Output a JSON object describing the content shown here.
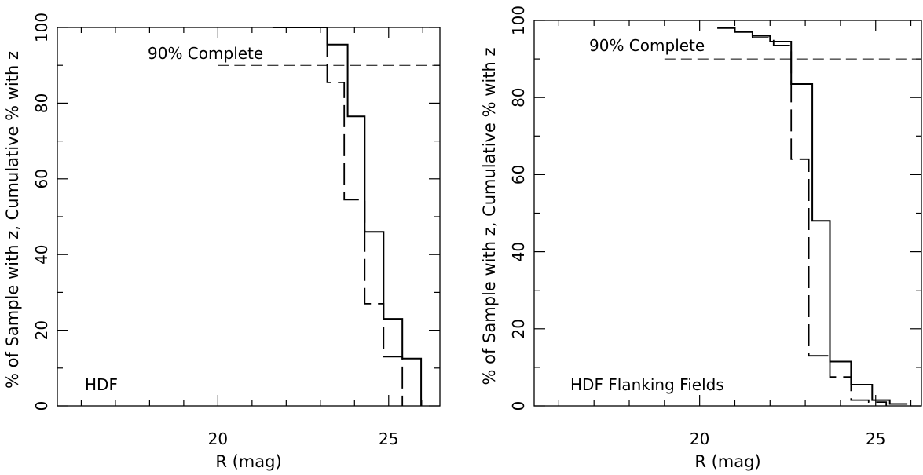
{
  "chart_data": [
    {
      "type": "line",
      "step": true,
      "xlabel": "R (mag)",
      "ylabel": "% of Sample with z, Cumulative % with z",
      "xlim": [
        15.3,
        26.5
      ],
      "ylim": [
        0,
        100
      ],
      "xticks": [
        20,
        25
      ],
      "yticks": [
        0,
        20,
        40,
        60,
        80,
        100
      ],
      "grid": false,
      "annotations": {
        "field_label": "HDF",
        "completeness_label": "90% Complete",
        "completeness_level": 90,
        "completeness_line_x": [
          20.0,
          26.5
        ]
      },
      "series": [
        {
          "style": "solid",
          "x": [
            21.6,
            23.2,
            23.2,
            23.8,
            23.8,
            24.3,
            24.3,
            24.85,
            24.85,
            25.4,
            25.4,
            25.95,
            25.95
          ],
          "y": [
            100,
            100,
            95.5,
            95.5,
            76.5,
            76.5,
            46,
            46,
            23,
            23,
            12.5,
            12.5,
            0
          ]
        },
        {
          "style": "dashed",
          "x": [
            23.2,
            23.2,
            23.7,
            23.7,
            24.3,
            24.3,
            24.85,
            24.85,
            25.4,
            25.4
          ],
          "y": [
            98,
            85.5,
            85.5,
            54.5,
            54.5,
            27,
            27,
            13,
            13,
            0
          ]
        }
      ]
    },
    {
      "type": "line",
      "step": true,
      "xlabel": "R (mag)",
      "ylabel": "% of Sample with z, Cumulative % with z",
      "xlim": [
        15.3,
        26.3
      ],
      "ylim": [
        0,
        100
      ],
      "xticks": [
        20,
        25
      ],
      "yticks": [
        0,
        20,
        40,
        60,
        80,
        100
      ],
      "grid": false,
      "annotations": {
        "field_label": "HDF Flanking Fields",
        "completeness_label": "90% Complete",
        "completeness_level": 90,
        "completeness_line_x": [
          19.0,
          26.3
        ]
      },
      "series": [
        {
          "style": "solid",
          "x": [
            20.5,
            21.0,
            21.0,
            21.5,
            21.5,
            22.0,
            22.0,
            22.6,
            22.6,
            23.2,
            23.2,
            23.7,
            23.7,
            24.3,
            24.3,
            24.9,
            24.9,
            25.4,
            25.4,
            25.9
          ],
          "y": [
            98,
            98,
            97,
            97,
            96,
            96,
            94.5,
            94.5,
            83.5,
            83.5,
            48,
            48,
            11.5,
            11.5,
            5.5,
            5.5,
            1.5,
            1.5,
            0.5,
            0.5
          ]
        },
        {
          "style": "dashed",
          "x": [
            21.5,
            21.5,
            22.1,
            22.1,
            22.6,
            22.6,
            23.1,
            23.1,
            23.7,
            23.7,
            24.3,
            24.3,
            24.8,
            24.8,
            25.3,
            25.3
          ],
          "y": [
            97,
            95.5,
            95.5,
            93.5,
            93.5,
            64,
            64,
            13,
            13,
            7.5,
            7.5,
            1.5,
            1.5,
            1,
            1,
            0
          ]
        }
      ]
    }
  ]
}
